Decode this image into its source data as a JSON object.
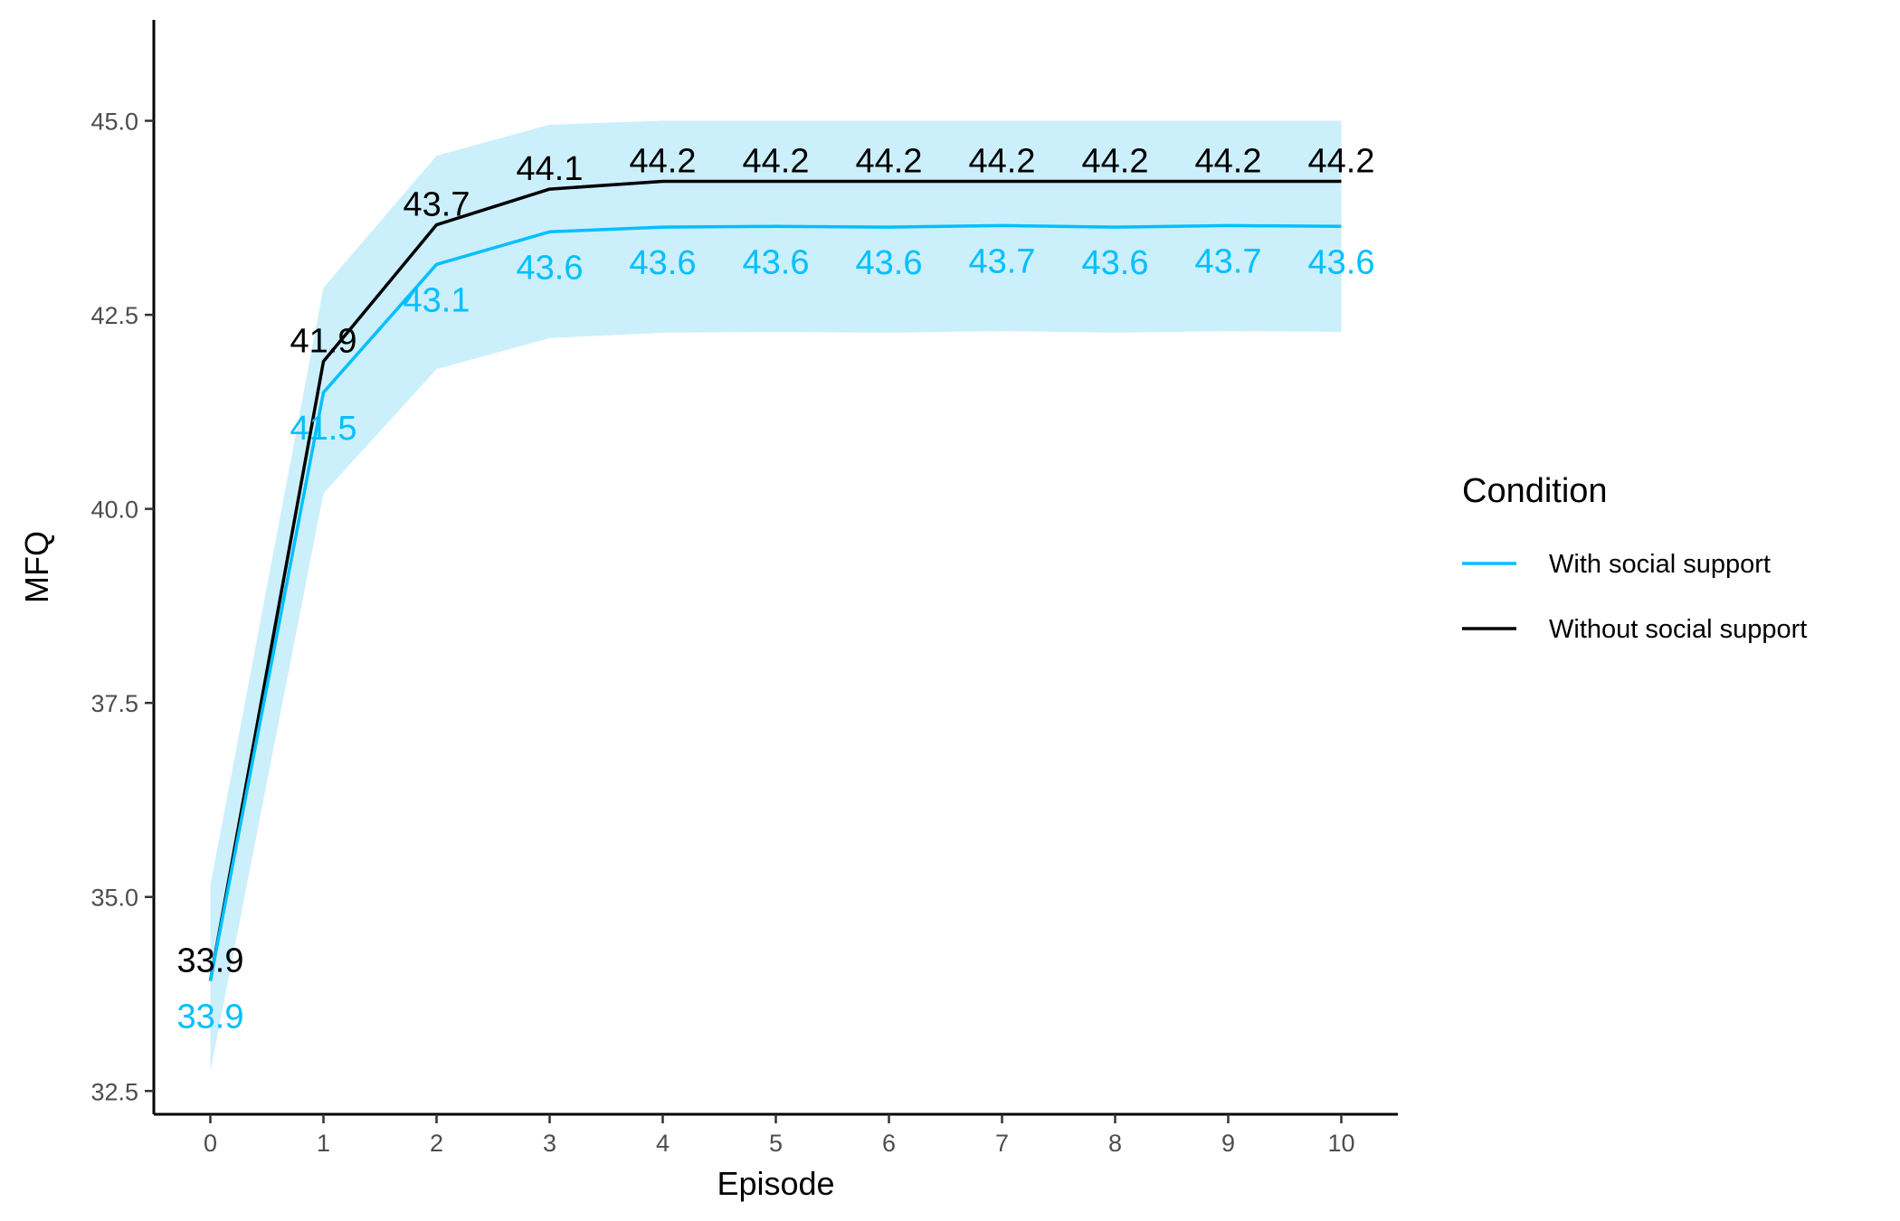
{
  "chart_data": {
    "type": "line",
    "xlabel": "Episode",
    "ylabel": "MFQ",
    "x": [
      0,
      1,
      2,
      3,
      4,
      5,
      6,
      7,
      8,
      9,
      10
    ],
    "xlim": [
      -0.5,
      10.5
    ],
    "ylim": [
      32.2,
      46.3
    ],
    "x_ticks": [
      0,
      1,
      2,
      3,
      4,
      5,
      6,
      7,
      8,
      9,
      10
    ],
    "y_ticks": [
      32.5,
      35.0,
      37.5,
      40.0,
      42.5,
      45.0
    ],
    "y_tick_labels": [
      "32.5",
      "35.0",
      "37.5",
      "40.0",
      "42.5",
      "45.0"
    ],
    "grid": false,
    "legend_title": "Condition",
    "legend_position": "right",
    "series": [
      {
        "name": "With social support",
        "color": "#00BFFF",
        "band_color": "#CCEFFC",
        "values": [
          33.92,
          41.5,
          43.15,
          43.57,
          43.63,
          43.64,
          43.63,
          43.65,
          43.63,
          43.65,
          43.64
        ],
        "labels": [
          "33.9",
          "41.5",
          "43.1",
          "43.6",
          "43.6",
          "43.6",
          "43.6",
          "43.7",
          "43.6",
          "43.7",
          "43.6"
        ],
        "band_upper": [
          35.15,
          42.85,
          44.55,
          44.95,
          45.0,
          45.0,
          45.0,
          45.0,
          45.0,
          45.0,
          45.0
        ],
        "band_lower": [
          32.75,
          40.2,
          41.8,
          42.2,
          42.27,
          42.28,
          42.27,
          42.29,
          42.27,
          42.29,
          42.28
        ]
      },
      {
        "name": "Without social support",
        "color": "#000000",
        "values": [
          33.92,
          41.9,
          43.66,
          44.12,
          44.22,
          44.22,
          44.22,
          44.22,
          44.22,
          44.22,
          44.22
        ],
        "labels": [
          "33.9",
          "41.9",
          "43.7",
          "44.1",
          "44.2",
          "44.2",
          "44.2",
          "44.2",
          "44.2",
          "44.2",
          "44.2"
        ]
      }
    ]
  }
}
